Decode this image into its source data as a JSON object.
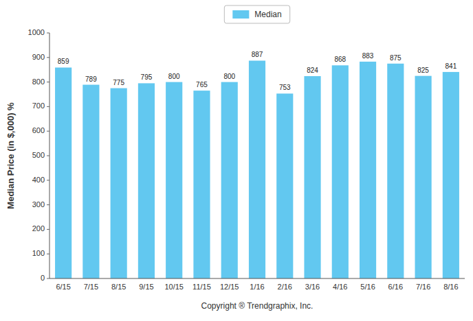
{
  "chart_data": {
    "type": "bar",
    "xlabel": "Copyright ® Trendgraphix, Inc.",
    "ylabel": "Median Price (in $,000) %",
    "categories": [
      "6/15",
      "7/15",
      "8/15",
      "9/15",
      "10/15",
      "11/15",
      "12/15",
      "1/16",
      "2/16",
      "3/16",
      "4/16",
      "5/16",
      "6/16",
      "7/16",
      "8/16"
    ],
    "series": [
      {
        "name": "Median",
        "color": "#62C8F0",
        "values": [
          859,
          789,
          775,
          795,
          800,
          765,
          800,
          887,
          753,
          824,
          868,
          883,
          875,
          825,
          841
        ]
      }
    ],
    "ylim": [
      0,
      1000
    ],
    "yticks": [
      0,
      100,
      200,
      300,
      400,
      500,
      600,
      700,
      800,
      900,
      1000
    ],
    "grid": false,
    "legend": "top",
    "data_labels": true
  }
}
